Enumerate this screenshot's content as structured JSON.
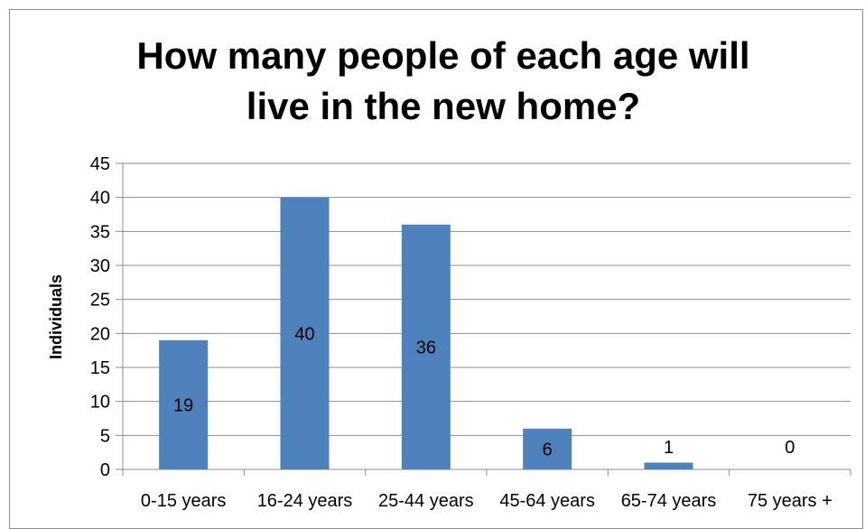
{
  "chart_data": {
    "type": "bar",
    "title_line1": "How many people of each age will",
    "title_line2": "live in the new home?",
    "xlabel": "",
    "ylabel": "Individuals",
    "categories": [
      "0-15 years",
      "16-24 years",
      "25-44 years",
      "45-64 years",
      "65-74 years",
      "75 years +"
    ],
    "values": [
      19,
      40,
      36,
      6,
      1,
      0
    ],
    "ylim": [
      0,
      45
    ],
    "yticks": [
      0,
      5,
      10,
      15,
      20,
      25,
      30,
      35,
      40,
      45
    ],
    "grid": true,
    "legend": "none",
    "bar_color": "#4f81bd",
    "grid_color": "#8c8c8c"
  }
}
